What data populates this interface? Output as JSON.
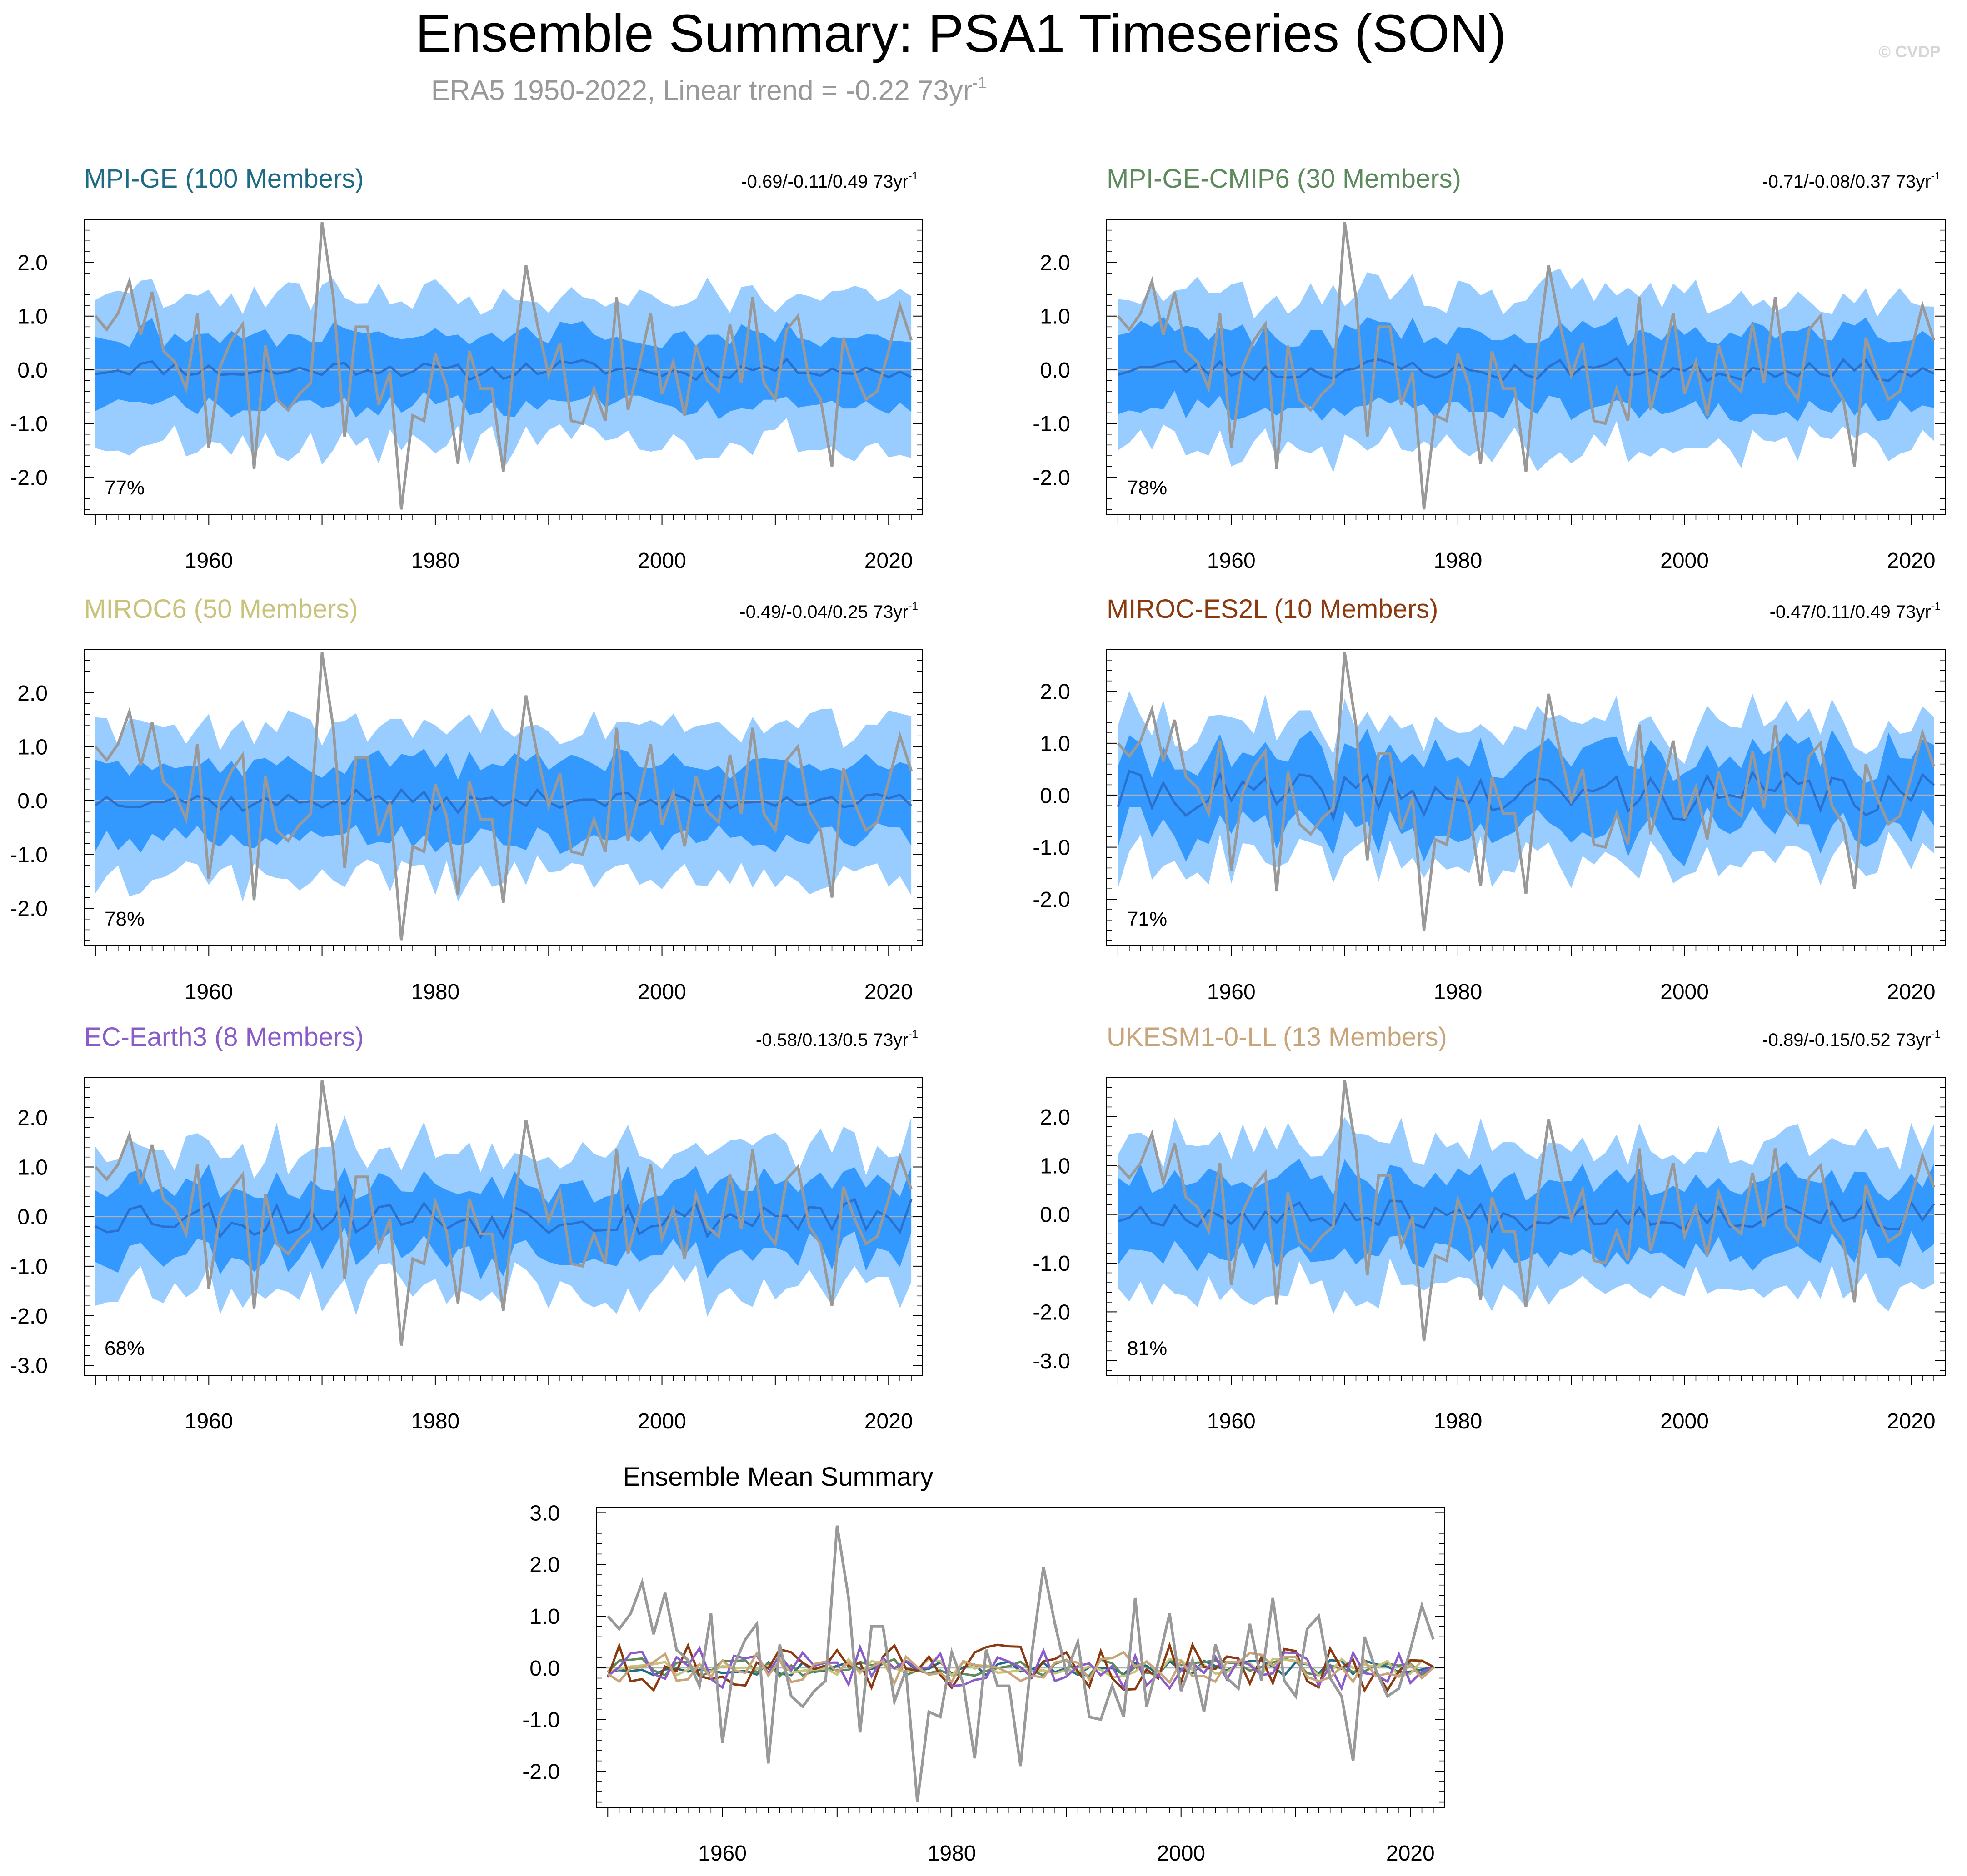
{
  "figure": {
    "title": "Ensemble Summary: PSA1 Timeseries (SON)",
    "subtitle_main": "ERA5 1950-2022, Linear trend = -0.22 73yr",
    "subtitle_sup": "-1",
    "watermark": "© CVDP"
  },
  "colors": {
    "band_outer": "#99ccff",
    "band_inner": "#3399ff",
    "ens_mean": "#2a70cc",
    "obs": "#999999",
    "zero_line": "#b0b0b0",
    "subtitle": "#999999",
    "watermark": "#d6d6d6"
  },
  "chart_data": [
    {
      "type": "line",
      "title": "MPI-GE (100 Members)",
      "title_color": "#1f6b85",
      "trend_text": "-0.69/-0.11/0.49 73yr",
      "trend_sup": "-1",
      "pct_label": "77%",
      "x_range": [
        1949,
        2023
      ],
      "ylim": [
        -2.7,
        2.8
      ],
      "yticks": [
        "2.0",
        "1.0",
        "0.0",
        "-1.0",
        "-2.0"
      ],
      "xticks": [
        "1960",
        "1980",
        "2000",
        "2020"
      ],
      "amplitude": {
        "mean": 0.15,
        "inner": 0.65,
        "outer": 1.35
      },
      "seed": 11
    },
    {
      "type": "line",
      "title": "MPI-GE-CMIP6 (30 Members)",
      "title_color": "#5c8a5c",
      "trend_text": "-0.71/-0.08/0.37 73yr",
      "trend_sup": "-1",
      "pct_label": "78%",
      "x_range": [
        1949,
        2023
      ],
      "ylim": [
        -2.7,
        2.8
      ],
      "yticks": [
        "2.0",
        "1.0",
        "0.0",
        "-1.0",
        "-2.0"
      ],
      "xticks": [
        "1960",
        "1980",
        "2000",
        "2020"
      ],
      "amplitude": {
        "mean": 0.18,
        "inner": 0.7,
        "outer": 1.4
      },
      "seed": 23
    },
    {
      "type": "line",
      "title": "MIROC6 (50 Members)",
      "title_color": "#c8c27a",
      "trend_text": "-0.49/-0.04/0.25 73yr",
      "trend_sup": "-1",
      "pct_label": "78%",
      "x_range": [
        1949,
        2023
      ],
      "ylim": [
        -2.7,
        2.8
      ],
      "yticks": [
        "2.0",
        "1.0",
        "0.0",
        "-1.0",
        "-2.0"
      ],
      "xticks": [
        "1960",
        "1980",
        "2000",
        "2020"
      ],
      "amplitude": {
        "mean": 0.18,
        "inner": 0.7,
        "outer": 1.35
      },
      "seed": 37
    },
    {
      "type": "line",
      "title": "MIROC-ES2L (10 Members)",
      "title_color": "#8a3a0e",
      "trend_text": "-0.47/0.11/0.49 73yr",
      "trend_sup": "-1",
      "pct_label": "71%",
      "x_range": [
        1949,
        2023
      ],
      "ylim": [
        -2.9,
        2.8
      ],
      "yticks": [
        "2.0",
        "1.0",
        "0.0",
        "-1.0",
        "-2.0"
      ],
      "xticks": [
        "1960",
        "1980",
        "2000",
        "2020"
      ],
      "amplitude": {
        "mean": 0.45,
        "inner": 0.75,
        "outer": 1.3
      },
      "seed": 41
    },
    {
      "type": "line",
      "title": "EC-Earth3 (8 Members)",
      "title_color": "#8a5cc8",
      "trend_text": "-0.58/0.13/0.5 73yr",
      "trend_sup": "-1",
      "pct_label": "68%",
      "x_range": [
        1949,
        2023
      ],
      "ylim": [
        -3.2,
        2.8
      ],
      "yticks": [
        "2.0",
        "1.0",
        "0.0",
        "-1.0",
        "-2.0",
        "-3.0"
      ],
      "xticks": [
        "1960",
        "1980",
        "2000",
        "2020"
      ],
      "amplitude": {
        "mean": 0.4,
        "inner": 0.7,
        "outer": 1.35
      },
      "seed": 53
    },
    {
      "type": "line",
      "title": "UKESM1-0-LL (13 Members)",
      "title_color": "#c8a47a",
      "trend_text": "-0.89/-0.15/0.52 73yr",
      "trend_sup": "-1",
      "pct_label": "81%",
      "x_range": [
        1949,
        2023
      ],
      "ylim": [
        -3.3,
        2.8
      ],
      "yticks": [
        "2.0",
        "1.0",
        "0.0",
        "-1.0",
        "-2.0",
        "-3.0"
      ],
      "xticks": [
        "1960",
        "1980",
        "2000",
        "2020"
      ],
      "amplitude": {
        "mean": 0.3,
        "inner": 0.75,
        "outer": 1.45
      },
      "seed": 67
    },
    {
      "type": "line",
      "title": "Ensemble Mean Summary",
      "title_color": "#000000",
      "x_range": [
        1949,
        2023
      ],
      "ylim": [
        -2.7,
        3.1
      ],
      "yticks": [
        "3.0",
        "2.0",
        "1.0",
        "0.0",
        "-1.0",
        "-2.0"
      ],
      "xticks": [
        "1960",
        "1980",
        "2000",
        "2020"
      ],
      "series_colors": [
        "#1f6b85",
        "#5c8a5c",
        "#c8c27a",
        "#8a3a0e",
        "#8a5cc8",
        "#c8a47a"
      ],
      "series_amplitude": [
        0.15,
        0.18,
        0.18,
        0.45,
        0.4,
        0.3
      ]
    }
  ],
  "obs_series": {
    "name": "ERA5",
    "x_start": 1950,
    "values": [
      1.0,
      0.75,
      1.05,
      1.65,
      0.65,
      1.45,
      0.35,
      0.15,
      -0.35,
      1.05,
      -1.45,
      0.05,
      0.55,
      0.85,
      -1.85,
      0.45,
      -0.55,
      -0.75,
      -0.45,
      -0.25,
      2.75,
      1.35,
      -1.25,
      0.8,
      0.8,
      -0.65,
      -0.05,
      -2.6,
      -0.85,
      -0.95,
      0.3,
      -0.3,
      -1.75,
      0.35,
      -0.35,
      -0.35,
      -1.9,
      0.3,
      1.95,
      0.85,
      -0.1,
      0.5,
      -0.95,
      -1.0,
      -0.35,
      -0.95,
      1.35,
      -0.75,
      0.1,
      1.05,
      -0.45,
      0.15,
      -0.85,
      0.45,
      -0.2,
      -0.4,
      0.85,
      -0.25,
      1.35,
      -0.25,
      -0.55,
      0.75,
      1.0,
      -0.2,
      -0.55,
      -1.8,
      0.6,
      -0.05,
      -0.55,
      -0.4,
      0.35,
      1.2,
      0.55
    ]
  }
}
